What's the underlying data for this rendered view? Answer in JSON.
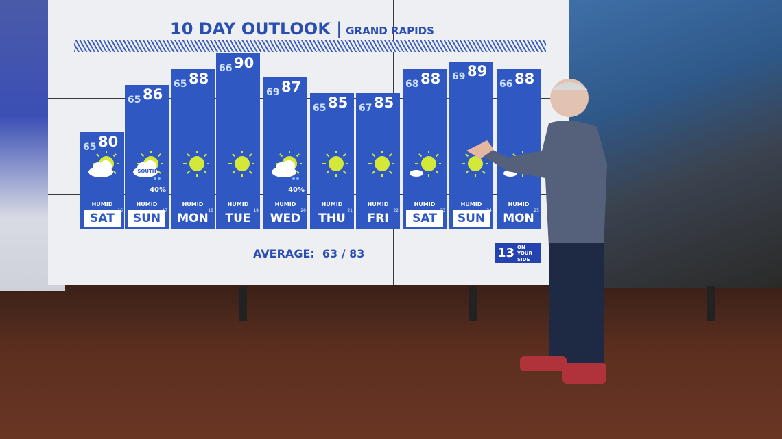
{
  "header": {
    "title": "10 DAY OUTLOOK",
    "separator": "|",
    "location": "GRAND RAPIDS"
  },
  "average": {
    "label": "AVERAGE:",
    "value": "63 / 83"
  },
  "logo": {
    "number": "13",
    "tagline": "ON YOUR SIDE"
  },
  "colors": {
    "bar": "#2f58c2",
    "title": "#2b4fb0",
    "sun": "#d4e83a"
  },
  "chart_data": {
    "type": "bar",
    "categories": [
      "SAT",
      "SUN",
      "MON",
      "TUE",
      "WED",
      "THU",
      "FRI",
      "SAT",
      "SUN",
      "MON"
    ],
    "dates": [
      "16",
      "17",
      "18",
      "19",
      "20",
      "21",
      "22",
      "23",
      "24",
      "25"
    ],
    "series": [
      {
        "name": "high",
        "values": [
          80,
          86,
          88,
          90,
          87,
          85,
          85,
          88,
          89,
          88
        ]
      },
      {
        "name": "low",
        "values": [
          65,
          65,
          65,
          66,
          69,
          65,
          67,
          68,
          69,
          66
        ]
      }
    ],
    "icons": [
      "partly-cloudy",
      "partly-cloudy-showers",
      "sunny",
      "sunny",
      "partly-cloudy-showers",
      "sunny",
      "sunny",
      "mostly-sunny",
      "sunny",
      "mostly-sunny"
    ],
    "icon_text": [
      "",
      "SOUTH",
      "",
      "",
      "",
      "",
      "",
      "",
      "",
      ""
    ],
    "precip": [
      "",
      "40%",
      "",
      "",
      "40%",
      "",
      "",
      "",
      "",
      ""
    ],
    "condition": [
      "HUMID",
      "HUMID",
      "HUMID",
      "HUMID",
      "HUMID",
      "HUMID",
      "HUMID",
      "HUMID",
      "HUMID",
      "HUMID"
    ],
    "weekend": [
      true,
      true,
      false,
      false,
      false,
      false,
      false,
      true,
      true,
      false
    ]
  }
}
